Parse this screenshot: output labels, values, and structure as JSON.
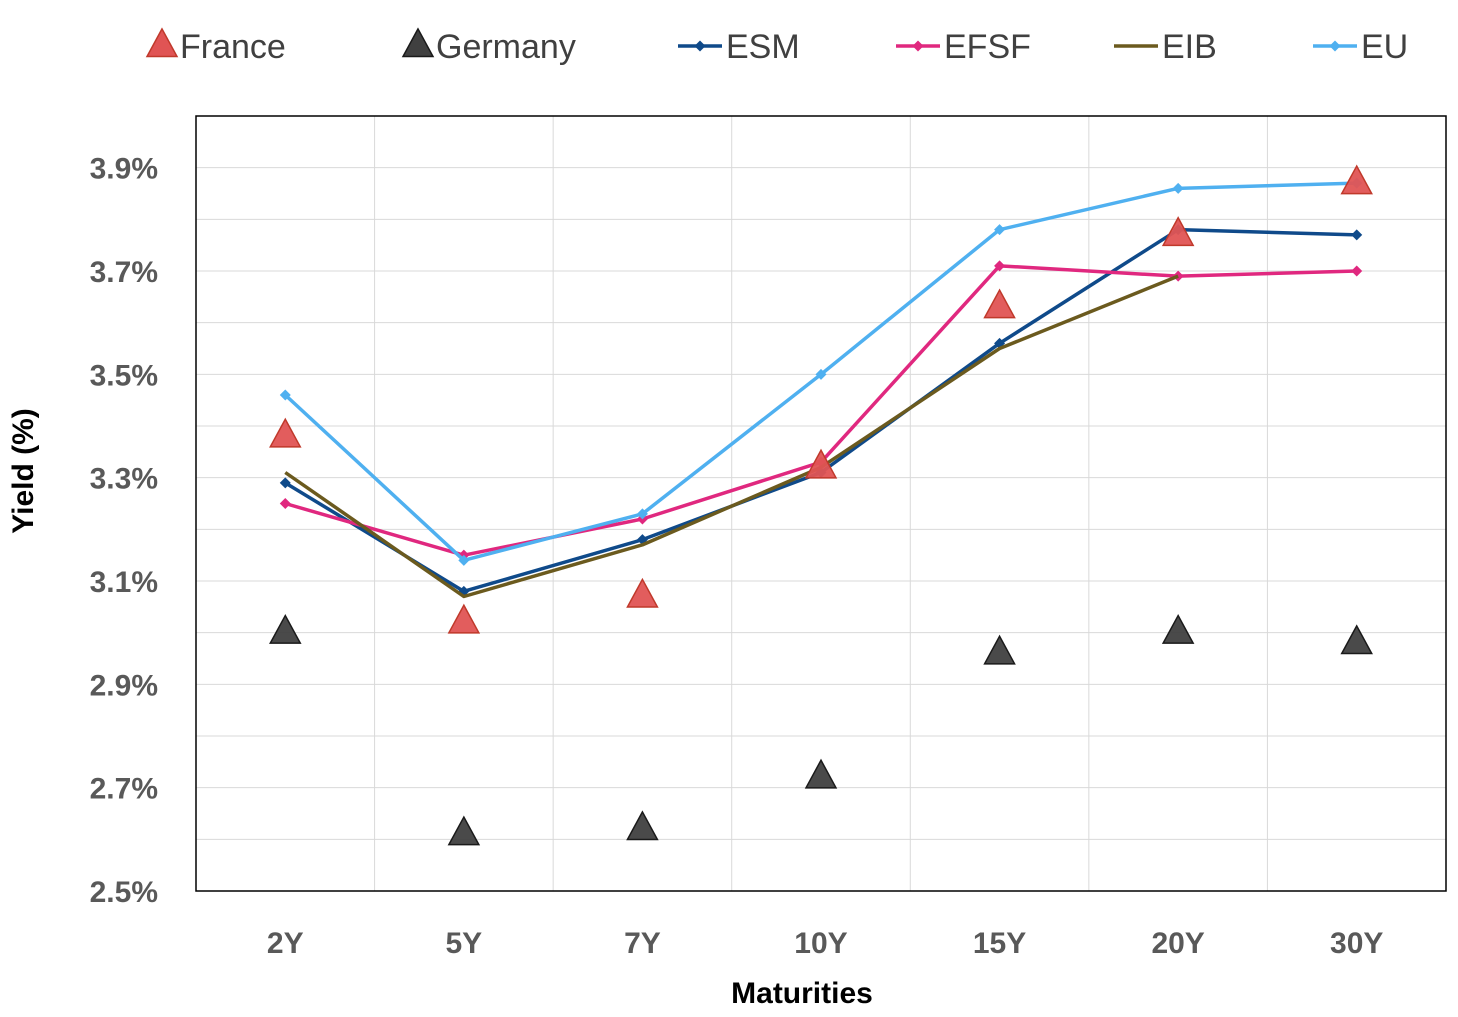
{
  "chart_data": {
    "type": "line",
    "title": "",
    "xlabel": "Maturities",
    "ylabel": "Yield (%)",
    "categories": [
      "2Y",
      "5Y",
      "7Y",
      "10Y",
      "15Y",
      "20Y",
      "30Y"
    ],
    "ylim": [
      2.5,
      4.0
    ],
    "yticks": [
      2.5,
      2.7,
      2.9,
      3.1,
      3.3,
      3.5,
      3.7,
      3.9
    ],
    "ytick_labels": [
      "2.5%",
      "2.7%",
      "2.9%",
      "3.1%",
      "3.3%",
      "3.5%",
      "3.7%",
      "3.9%"
    ],
    "grid": true,
    "legend_position": "top",
    "series": [
      {
        "name": "France",
        "kind": "marker",
        "marker": "triangle",
        "color": "#E05454",
        "stroke": "#C0392B",
        "values": [
          3.38,
          3.02,
          3.07,
          3.32,
          3.63,
          3.77,
          3.87
        ]
      },
      {
        "name": "Germany",
        "kind": "marker",
        "marker": "triangle",
        "color": "#404040",
        "stroke": "#1a1a1a",
        "values": [
          3.0,
          2.61,
          2.62,
          2.72,
          2.96,
          3.0,
          2.98
        ]
      },
      {
        "name": "ESM",
        "kind": "line",
        "marker": "diamond",
        "color": "#0F4A8A",
        "values": [
          3.29,
          3.08,
          3.18,
          3.31,
          3.56,
          3.78,
          3.77
        ]
      },
      {
        "name": "EFSF",
        "kind": "line",
        "marker": "diamond",
        "color": "#E0287F",
        "values": [
          3.25,
          3.15,
          3.22,
          3.33,
          3.71,
          3.69,
          3.7
        ]
      },
      {
        "name": "EIB",
        "kind": "line",
        "marker": "none",
        "color": "#6B5A1E",
        "values": [
          3.31,
          3.07,
          3.17,
          3.32,
          3.55,
          3.69,
          null
        ]
      },
      {
        "name": "EU",
        "kind": "line",
        "marker": "diamond",
        "color": "#4FB0F0",
        "values": [
          3.46,
          3.14,
          3.23,
          3.5,
          3.78,
          3.86,
          3.87
        ]
      }
    ]
  }
}
